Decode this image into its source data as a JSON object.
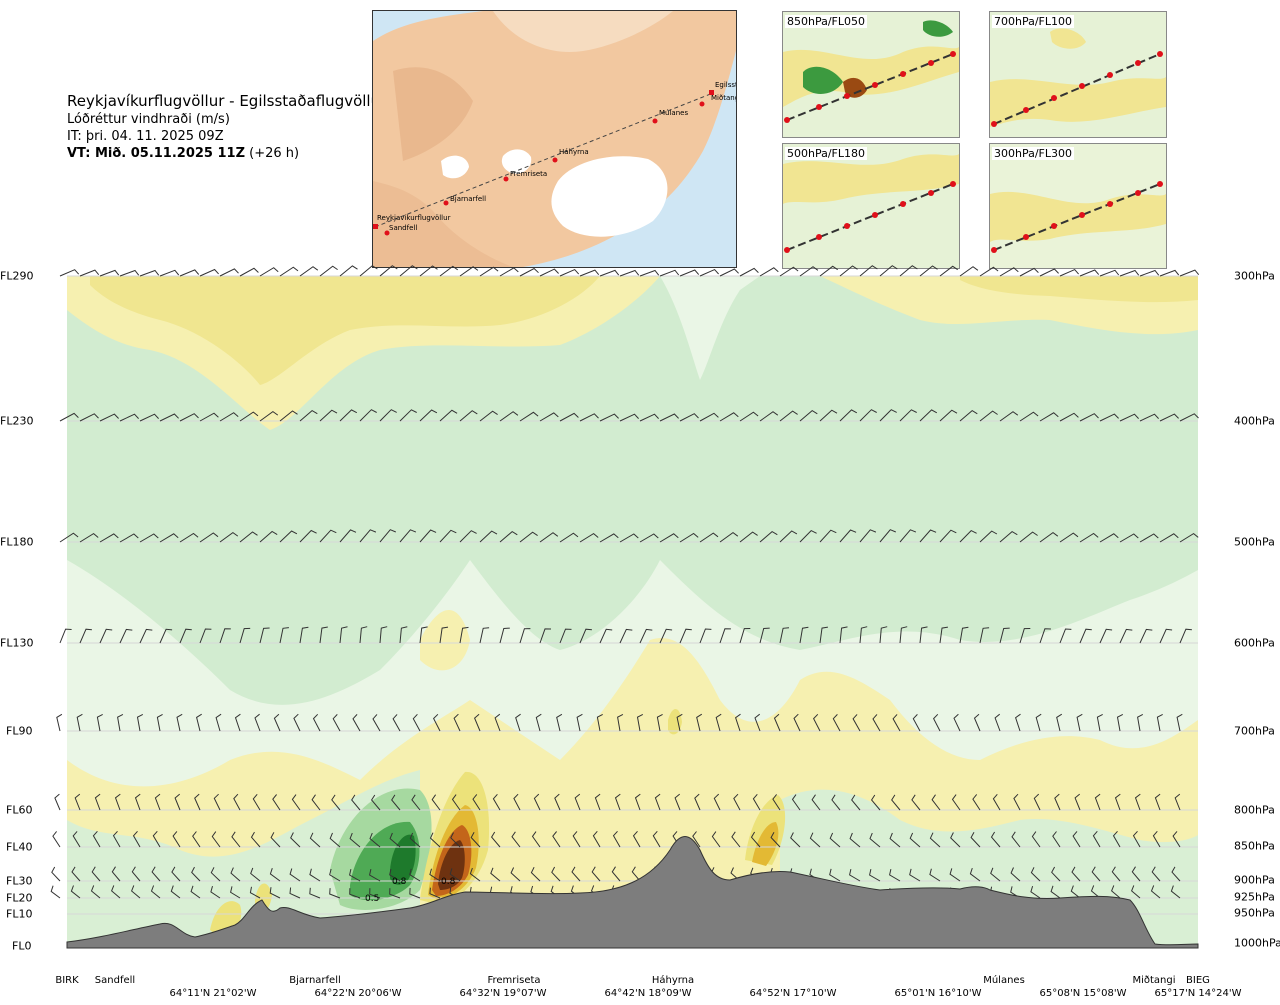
{
  "header": {
    "title": "Reykjavíkurflugvöllur - Egilsstaðaflugvöllur",
    "variable": "Lóðréttur vindhraði (m/s)",
    "issue_time": "IT: þri. 04. 11. 2025 09Z",
    "valid_time_bold": "VT: Mið. 05.11.2025 11Z",
    "valid_time_offset": "(+26 h)"
  },
  "map": {
    "stations": [
      "Reykjavíkurflugvöllur",
      "Sandfell",
      "Bjarnarfell",
      "Fremriseta",
      "Háhyrna",
      "Múlanes",
      "Miðtangi",
      "Egilsstaðir"
    ]
  },
  "mini_panels": [
    {
      "label": "850hPa/FL050"
    },
    {
      "label": "700hPa/FL100"
    },
    {
      "label": "500hPa/FL180"
    },
    {
      "label": "300hPa/FL300"
    }
  ],
  "colors": {
    "strong_down": "#1e7a2c",
    "mod_down": "#4faa55",
    "weak_down": "#a6d9a0",
    "faint_down": "#d2ecd0",
    "neutral": "#f5f8e8",
    "faint_up": "#f6f0b0",
    "weak_up": "#ece27a",
    "mod_up": "#e3b934",
    "strong_up": "#c3651a",
    "extreme_up": "#6e3210",
    "terrain": "#7d7d7d"
  },
  "chart_data": {
    "type": "heatmap",
    "title": "Reykjavíkurflugvöllur - Egilsstaðaflugvöllur",
    "variable": "Lóðréttur vindhraði (m/s)",
    "y_levels_left": [
      "FL290",
      "FL230",
      "FL180",
      "FL130",
      "FL90",
      "FL60",
      "FL40",
      "FL30",
      "FL20",
      "FL10",
      "FL0"
    ],
    "y_levels_right": [
      "300hPa",
      "400hPa",
      "500hPa",
      "600hPa",
      "700hPa",
      "800hPa",
      "850hPa",
      "900hPa",
      "925hPa",
      "950hPa",
      "1000hPa"
    ],
    "stations": [
      "BIRK",
      "Sandfell",
      "Bjarnarfell",
      "Fremriseta",
      "Háhyrna",
      "Múlanes",
      "Miðtangi",
      "BIEG"
    ],
    "coordinates": [
      "64°11'N 21°02'W",
      "64°22'N 20°06'W",
      "64°32'N 19°07'W",
      "64°42'N 18°09'W",
      "64°52'N 17°10'W",
      "65°01'N 16°10'W",
      "65°08'N 15°08'W",
      "65°17'N 14°24'W"
    ],
    "contour_labels": [
      "0.5",
      "0.8",
      "0.8"
    ]
  }
}
